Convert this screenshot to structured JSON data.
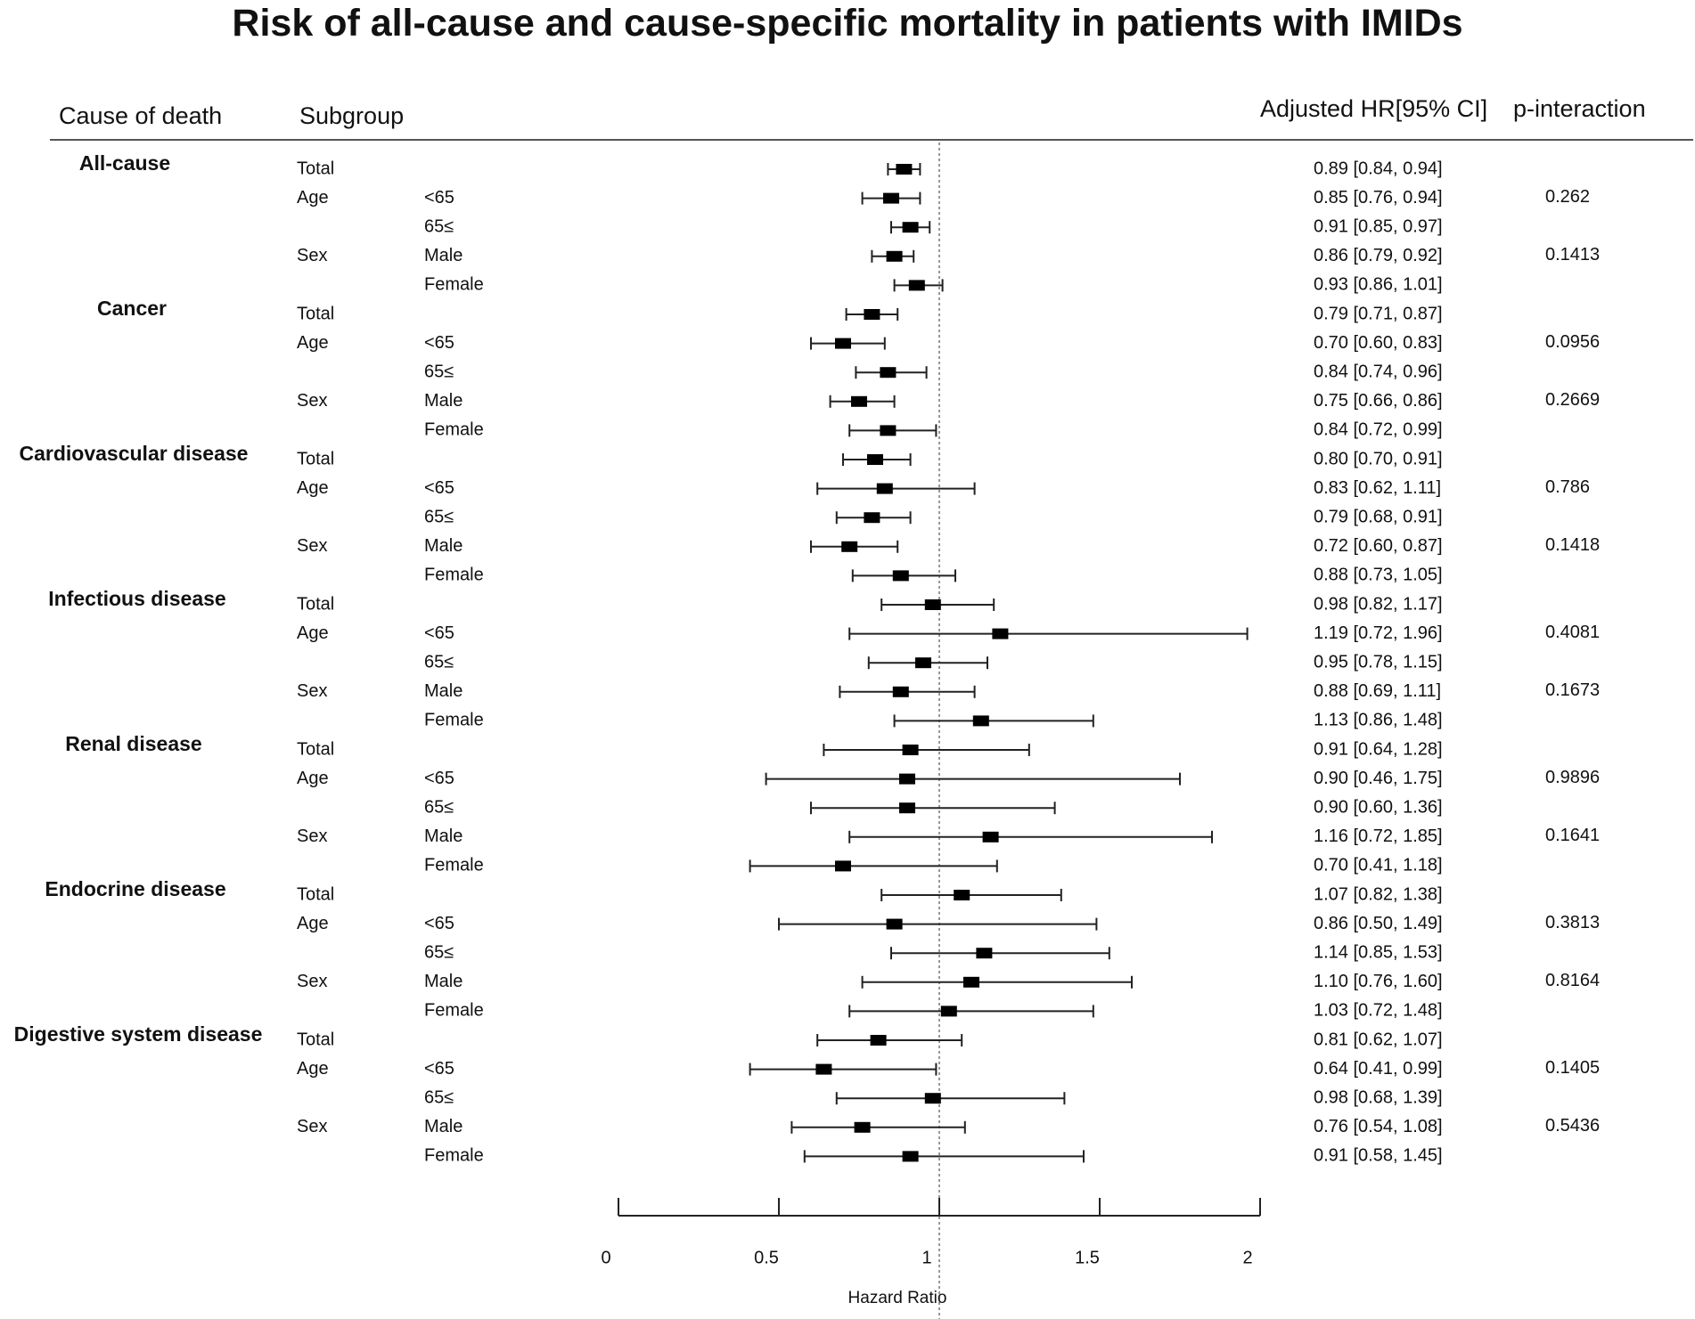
{
  "title": "Risk of all-cause and cause-specific mortality in patients with IMIDs",
  "headers": {
    "cause": "Cause of death",
    "subgroup": "Subgroup",
    "hr": "Adjusted HR[95% CI]",
    "p": "p-interaction"
  },
  "chart_data": {
    "type": "forest",
    "title": "Risk of all-cause and cause-specific mortality in patients with IMIDs",
    "xlabel": "Hazard Ratio",
    "xlim": [
      0,
      2
    ],
    "xticks": [
      0,
      0.5,
      1,
      1.5,
      2
    ],
    "xtick_labels": [
      "0",
      "0.5",
      "1",
      "1.5",
      "2"
    ],
    "reference_line": 1,
    "groups": [
      {
        "cause": "All-cause",
        "rows": [
          {
            "var": "Total",
            "level": "",
            "hr": 0.89,
            "lo": 0.84,
            "hi": 0.94,
            "label": "0.89 [0.84, 0.94]",
            "p": ""
          },
          {
            "var": "Age",
            "level": "<65",
            "hr": 0.85,
            "lo": 0.76,
            "hi": 0.94,
            "label": "0.85 [0.76, 0.94]",
            "p": "0.262"
          },
          {
            "var": "",
            "level": "65≤",
            "hr": 0.91,
            "lo": 0.85,
            "hi": 0.97,
            "label": "0.91 [0.85, 0.97]",
            "p": ""
          },
          {
            "var": "Sex",
            "level": "Male",
            "hr": 0.86,
            "lo": 0.79,
            "hi": 0.92,
            "label": "0.86 [0.79, 0.92]",
            "p": "0.1413"
          },
          {
            "var": "",
            "level": "Female",
            "hr": 0.93,
            "lo": 0.86,
            "hi": 1.01,
            "label": "0.93 [0.86, 1.01]",
            "p": ""
          }
        ]
      },
      {
        "cause": "Cancer",
        "rows": [
          {
            "var": "Total",
            "level": "",
            "hr": 0.79,
            "lo": 0.71,
            "hi": 0.87,
            "label": "0.79 [0.71, 0.87]",
            "p": ""
          },
          {
            "var": "Age",
            "level": "<65",
            "hr": 0.7,
            "lo": 0.6,
            "hi": 0.83,
            "label": "0.70 [0.60, 0.83]",
            "p": "0.0956"
          },
          {
            "var": "",
            "level": "65≤",
            "hr": 0.84,
            "lo": 0.74,
            "hi": 0.96,
            "label": "0.84 [0.74, 0.96]",
            "p": ""
          },
          {
            "var": "Sex",
            "level": "Male",
            "hr": 0.75,
            "lo": 0.66,
            "hi": 0.86,
            "label": "0.75 [0.66, 0.86]",
            "p": "0.2669"
          },
          {
            "var": "",
            "level": "Female",
            "hr": 0.84,
            "lo": 0.72,
            "hi": 0.99,
            "label": "0.84 [0.72, 0.99]",
            "p": ""
          }
        ]
      },
      {
        "cause": "Cardiovascular disease",
        "rows": [
          {
            "var": "Total",
            "level": "",
            "hr": 0.8,
            "lo": 0.7,
            "hi": 0.91,
            "label": "0.80 [0.70, 0.91]",
            "p": ""
          },
          {
            "var": "Age",
            "level": "<65",
            "hr": 0.83,
            "lo": 0.62,
            "hi": 1.11,
            "label": "0.83 [0.62, 1.11]",
            "p": "0.786"
          },
          {
            "var": "",
            "level": "65≤",
            "hr": 0.79,
            "lo": 0.68,
            "hi": 0.91,
            "label": "0.79 [0.68, 0.91]",
            "p": ""
          },
          {
            "var": "Sex",
            "level": "Male",
            "hr": 0.72,
            "lo": 0.6,
            "hi": 0.87,
            "label": "0.72 [0.60, 0.87]",
            "p": "0.1418"
          },
          {
            "var": "",
            "level": "Female",
            "hr": 0.88,
            "lo": 0.73,
            "hi": 1.05,
            "label": "0.88 [0.73, 1.05]",
            "p": ""
          }
        ]
      },
      {
        "cause": "Infectious disease",
        "rows": [
          {
            "var": "Total",
            "level": "",
            "hr": 0.98,
            "lo": 0.82,
            "hi": 1.17,
            "label": "0.98 [0.82, 1.17]",
            "p": ""
          },
          {
            "var": "Age",
            "level": "<65",
            "hr": 1.19,
            "lo": 0.72,
            "hi": 1.96,
            "label": "1.19 [0.72, 1.96]",
            "p": "0.4081"
          },
          {
            "var": "",
            "level": "65≤",
            "hr": 0.95,
            "lo": 0.78,
            "hi": 1.15,
            "label": "0.95 [0.78, 1.15]",
            "p": ""
          },
          {
            "var": "Sex",
            "level": "Male",
            "hr": 0.88,
            "lo": 0.69,
            "hi": 1.11,
            "label": "0.88 [0.69, 1.11]",
            "p": "0.1673"
          },
          {
            "var": "",
            "level": "Female",
            "hr": 1.13,
            "lo": 0.86,
            "hi": 1.48,
            "label": "1.13 [0.86, 1.48]",
            "p": ""
          }
        ]
      },
      {
        "cause": "Renal disease",
        "rows": [
          {
            "var": "Total",
            "level": "",
            "hr": 0.91,
            "lo": 0.64,
            "hi": 1.28,
            "label": "0.91 [0.64, 1.28]",
            "p": ""
          },
          {
            "var": "Age",
            "level": "<65",
            "hr": 0.9,
            "lo": 0.46,
            "hi": 1.75,
            "label": "0.90 [0.46, 1.75]",
            "p": "0.9896"
          },
          {
            "var": "",
            "level": "65≤",
            "hr": 0.9,
            "lo": 0.6,
            "hi": 1.36,
            "label": "0.90 [0.60, 1.36]",
            "p": ""
          },
          {
            "var": "Sex",
            "level": "Male",
            "hr": 1.16,
            "lo": 0.72,
            "hi": 1.85,
            "label": "1.16 [0.72, 1.85]",
            "p": "0.1641"
          },
          {
            "var": "",
            "level": "Female",
            "hr": 0.7,
            "lo": 0.41,
            "hi": 1.18,
            "label": "0.70 [0.41, 1.18]",
            "p": ""
          }
        ]
      },
      {
        "cause": "Endocrine disease",
        "rows": [
          {
            "var": "Total",
            "level": "",
            "hr": 1.07,
            "lo": 0.82,
            "hi": 1.38,
            "label": "1.07 [0.82, 1.38]",
            "p": ""
          },
          {
            "var": "Age",
            "level": "<65",
            "hr": 0.86,
            "lo": 0.5,
            "hi": 1.49,
            "label": "0.86 [0.50, 1.49]",
            "p": "0.3813"
          },
          {
            "var": "",
            "level": "65≤",
            "hr": 1.14,
            "lo": 0.85,
            "hi": 1.53,
            "label": "1.14 [0.85, 1.53]",
            "p": ""
          },
          {
            "var": "Sex",
            "level": "Male",
            "hr": 1.1,
            "lo": 0.76,
            "hi": 1.6,
            "label": "1.10 [0.76, 1.60]",
            "p": "0.8164"
          },
          {
            "var": "",
            "level": "Female",
            "hr": 1.03,
            "lo": 0.72,
            "hi": 1.48,
            "label": "1.03 [0.72, 1.48]",
            "p": ""
          }
        ]
      },
      {
        "cause": "Digestive system disease",
        "rows": [
          {
            "var": "Total",
            "level": "",
            "hr": 0.81,
            "lo": 0.62,
            "hi": 1.07,
            "label": "0.81 [0.62, 1.07]",
            "p": ""
          },
          {
            "var": "Age",
            "level": "<65",
            "hr": 0.64,
            "lo": 0.41,
            "hi": 0.99,
            "label": "0.64 [0.41, 0.99]",
            "p": "0.1405"
          },
          {
            "var": "",
            "level": "65≤",
            "hr": 0.98,
            "lo": 0.68,
            "hi": 1.39,
            "label": "0.98 [0.68, 1.39]",
            "p": ""
          },
          {
            "var": "Sex",
            "level": "Male",
            "hr": 0.76,
            "lo": 0.54,
            "hi": 1.08,
            "label": "0.76 [0.54, 1.08]",
            "p": "0.5436"
          },
          {
            "var": "",
            "level": "Female",
            "hr": 0.91,
            "lo": 0.58,
            "hi": 1.45,
            "label": "0.91 [0.58, 1.45]",
            "p": ""
          }
        ]
      }
    ]
  }
}
